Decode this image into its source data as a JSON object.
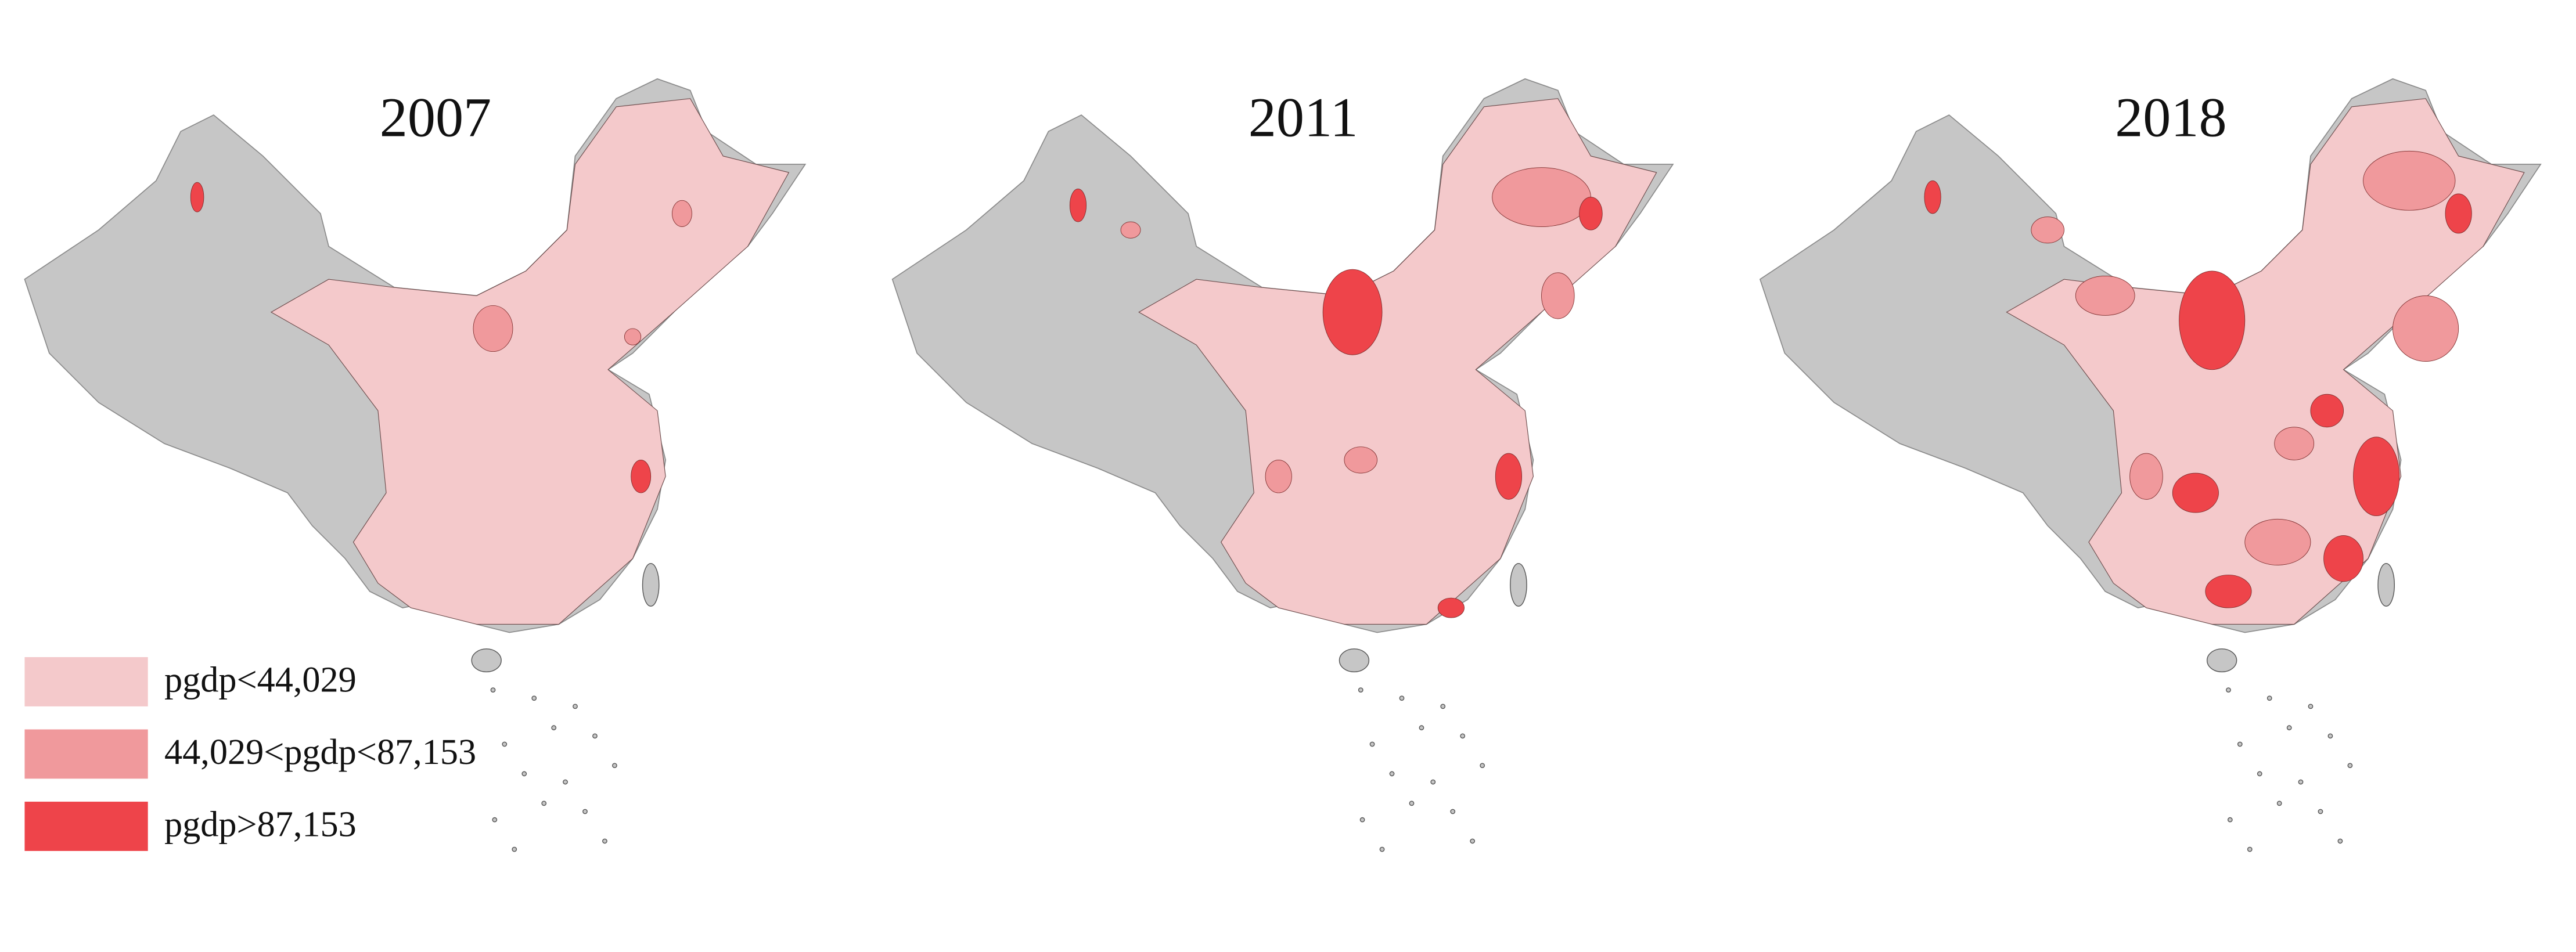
{
  "maps": [
    {
      "title": "2007"
    },
    {
      "title": "2011"
    },
    {
      "title": "2018"
    }
  ],
  "legend": {
    "items": [
      {
        "label": "pgdp<44,029",
        "color": "#f4c9cb"
      },
      {
        "label": "44,029<pgdp<87,153",
        "color": "#f0999c"
      },
      {
        "label": "pgdp>87,153",
        "color": "#ee444a"
      }
    ]
  }
}
